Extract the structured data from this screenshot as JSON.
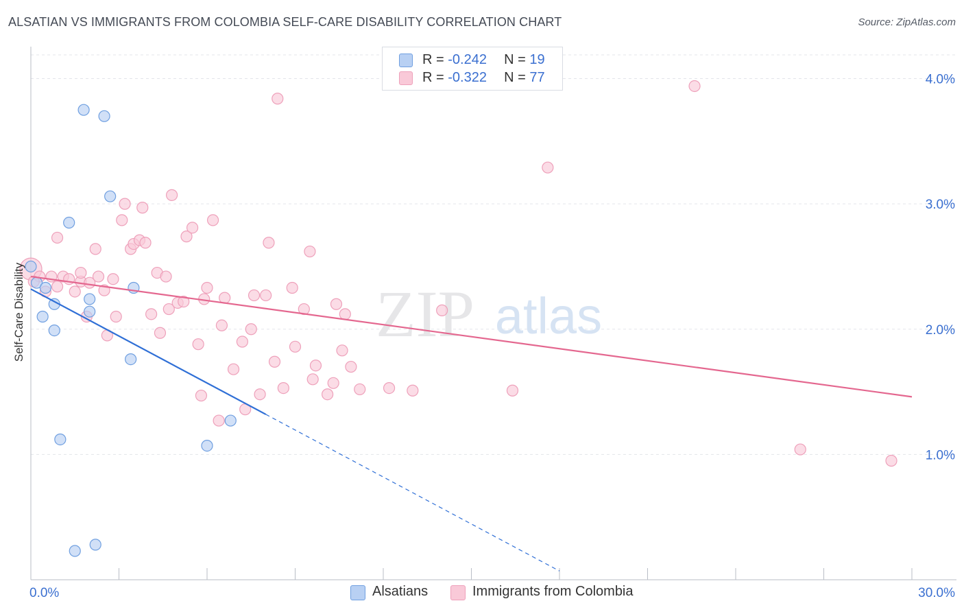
{
  "title": "ALSATIAN VS IMMIGRANTS FROM COLOMBIA SELF-CARE DISABILITY CORRELATION CHART",
  "source": "Source: ZipAtlas.com",
  "watermark": {
    "zip": "ZIP",
    "atlas": "atlas"
  },
  "legend": {
    "rows": [
      {
        "r_label": "R = ",
        "r_value": "-0.242",
        "n_label": "N = ",
        "n_value": "19"
      },
      {
        "r_label": "R = ",
        "r_value": "-0.322",
        "n_label": "N = ",
        "n_value": "77"
      }
    ]
  },
  "bottom_legend": [
    "Alsatians",
    "Immigrants from Colombia"
  ],
  "colors": {
    "blue_fill": "#b8d0f3",
    "blue_stroke": "#6f9fe0",
    "blue_line": "#2f6fd6",
    "pink_fill": "#f9c9d8",
    "pink_stroke": "#eea0ba",
    "pink_line": "#e4678f",
    "axis_text": "#3a6fd0",
    "grid": "#e3e5ea"
  },
  "chart_data": {
    "type": "scatter",
    "title": "ALSATIAN VS IMMIGRANTS FROM COLOMBIA SELF-CARE DISABILITY CORRELATION CHART",
    "xlabel": "",
    "ylabel": "Self-Care Disability",
    "xlim": [
      0,
      30
    ],
    "ylim": [
      0,
      4.2
    ],
    "x_tick_labels": [
      "0.0%",
      "30.0%"
    ],
    "y_ticks": [
      1.0,
      2.0,
      3.0,
      4.0
    ],
    "y_tick_labels": [
      "1.0%",
      "2.0%",
      "3.0%",
      "4.0%"
    ],
    "grid": true,
    "series": [
      {
        "name": "Alsatians",
        "points": [
          [
            0.0,
            2.5
          ],
          [
            0.2,
            2.37
          ],
          [
            0.5,
            2.33
          ],
          [
            0.4,
            2.1
          ],
          [
            0.8,
            2.2
          ],
          [
            0.8,
            1.99
          ],
          [
            1.3,
            2.85
          ],
          [
            1.8,
            3.75
          ],
          [
            2.5,
            3.7
          ],
          [
            2.7,
            3.06
          ],
          [
            2.0,
            2.14
          ],
          [
            2.0,
            2.24
          ],
          [
            3.5,
            2.33
          ],
          [
            3.4,
            1.76
          ],
          [
            1.0,
            1.12
          ],
          [
            6.8,
            1.27
          ],
          [
            6.0,
            1.07
          ],
          [
            1.5,
            0.23
          ],
          [
            2.2,
            0.28
          ]
        ],
        "trend": {
          "x": [
            0.0,
            8.0
          ],
          "y": [
            2.32,
            1.32
          ]
        },
        "trend_extension": {
          "x": [
            8.0,
            18.0
          ],
          "y": [
            1.32,
            0.07
          ]
        }
      },
      {
        "name": "Immigrants from Colombia",
        "points": [
          [
            0.0,
            2.48
          ],
          [
            0.3,
            2.42
          ],
          [
            0.5,
            2.3
          ],
          [
            0.7,
            2.42
          ],
          [
            0.9,
            2.34
          ],
          [
            0.9,
            2.73
          ],
          [
            1.1,
            2.42
          ],
          [
            1.3,
            2.4
          ],
          [
            1.5,
            2.3
          ],
          [
            1.7,
            2.38
          ],
          [
            1.7,
            2.45
          ],
          [
            1.9,
            2.1
          ],
          [
            2.0,
            2.37
          ],
          [
            2.2,
            2.64
          ],
          [
            2.3,
            2.42
          ],
          [
            2.5,
            2.31
          ],
          [
            2.6,
            1.95
          ],
          [
            2.8,
            2.4
          ],
          [
            2.9,
            2.1
          ],
          [
            3.1,
            2.87
          ],
          [
            3.2,
            3.0
          ],
          [
            3.4,
            2.64
          ],
          [
            3.5,
            2.68
          ],
          [
            3.7,
            2.71
          ],
          [
            3.8,
            2.97
          ],
          [
            3.9,
            2.69
          ],
          [
            4.1,
            2.12
          ],
          [
            4.3,
            2.45
          ],
          [
            4.4,
            1.97
          ],
          [
            4.6,
            2.42
          ],
          [
            4.7,
            2.16
          ],
          [
            4.8,
            3.07
          ],
          [
            5.0,
            2.21
          ],
          [
            5.2,
            2.22
          ],
          [
            5.3,
            2.74
          ],
          [
            5.5,
            2.81
          ],
          [
            5.7,
            1.88
          ],
          [
            5.8,
            1.47
          ],
          [
            5.9,
            2.24
          ],
          [
            6.0,
            2.33
          ],
          [
            6.2,
            2.87
          ],
          [
            6.4,
            1.27
          ],
          [
            6.5,
            2.03
          ],
          [
            6.6,
            2.25
          ],
          [
            6.9,
            1.68
          ],
          [
            7.2,
            1.9
          ],
          [
            7.3,
            1.36
          ],
          [
            7.5,
            2.0
          ],
          [
            7.6,
            2.27
          ],
          [
            7.8,
            1.48
          ],
          [
            8.0,
            2.27
          ],
          [
            8.1,
            2.69
          ],
          [
            8.3,
            1.74
          ],
          [
            8.4,
            3.84
          ],
          [
            8.6,
            1.53
          ],
          [
            8.9,
            2.33
          ],
          [
            9.0,
            1.86
          ],
          [
            9.3,
            2.16
          ],
          [
            9.5,
            2.62
          ],
          [
            9.6,
            1.6
          ],
          [
            9.7,
            1.71
          ],
          [
            10.1,
            1.48
          ],
          [
            10.3,
            1.57
          ],
          [
            10.4,
            2.2
          ],
          [
            10.6,
            1.83
          ],
          [
            10.7,
            2.12
          ],
          [
            10.9,
            1.7
          ],
          [
            11.2,
            1.52
          ],
          [
            12.2,
            1.53
          ],
          [
            13.0,
            1.51
          ],
          [
            14.0,
            2.15
          ],
          [
            16.4,
            1.51
          ],
          [
            17.6,
            3.29
          ],
          [
            22.6,
            3.94
          ],
          [
            26.2,
            1.04
          ],
          [
            29.3,
            0.95
          ],
          [
            0.1,
            2.38
          ]
        ],
        "trend": {
          "x": [
            0.0,
            30.0
          ],
          "y": [
            2.42,
            1.46
          ]
        }
      }
    ]
  }
}
